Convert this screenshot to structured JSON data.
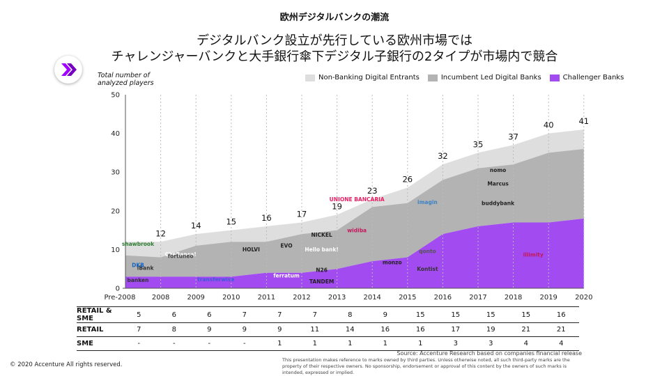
{
  "header": {
    "label": "欧州デジタルバンクの潮流",
    "title_line1": "デジタルバンク設立が先行している欧州市場では",
    "title_line2": "チャレンジャーバンクと大手銀行傘下デジタル子銀行の2タイプが市場内で競合"
  },
  "chart_data": {
    "type": "area",
    "ylabel": "Total number of analyzed players",
    "ylim": [
      0,
      50
    ],
    "yticks": [
      0,
      10,
      20,
      30,
      40,
      50
    ],
    "categories": [
      "Pre-2008",
      "2008",
      "2009",
      "2010",
      "2011",
      "2012",
      "2013",
      "2014",
      "2015",
      "2016",
      "2017",
      "2018",
      "2019",
      "2020"
    ],
    "series": [
      {
        "name": "Challenger Banks",
        "color": "#a24bf0",
        "values": [
          3,
          3,
          3,
          3,
          4,
          4,
          5,
          7,
          8,
          14,
          16,
          17,
          17,
          18
        ]
      },
      {
        "name": "Incumbent Led Digital Banks",
        "color": "#b3b3b3",
        "values": [
          5.5,
          5,
          8,
          9,
          8,
          10,
          10,
          14,
          14,
          14,
          15,
          15,
          18,
          18
        ]
      },
      {
        "name": "Non-Banking Digital Entrants",
        "color": "#dedede",
        "values": [
          3.5,
          4,
          3,
          3,
          4,
          3,
          4,
          2,
          4,
          4,
          4,
          5,
          5,
          5
        ]
      }
    ],
    "totals": [
      null,
      12,
      14,
      15,
      16,
      17,
      19,
      23,
      26,
      32,
      35,
      37,
      40,
      41
    ],
    "legend_position": "top-right",
    "grid": "vertical-dashed"
  },
  "legend": {
    "items": [
      {
        "label": "Non-Banking Digital Entrants",
        "color": "#dedede"
      },
      {
        "label": "Incumbent Led Digital Banks",
        "color": "#b3b3b3"
      },
      {
        "label": "Challenger Banks",
        "color": "#a24bf0"
      }
    ]
  },
  "table": {
    "rows": [
      {
        "label": "RETAIL & SME",
        "values": [
          "5",
          "6",
          "6",
          "7",
          "7",
          "7",
          "8",
          "9",
          "15",
          "15",
          "15",
          "15",
          "16"
        ]
      },
      {
        "label": "RETAIL",
        "values": [
          "7",
          "8",
          "9",
          "9",
          "9",
          "11",
          "14",
          "16",
          "16",
          "17",
          "19",
          "21",
          "21"
        ]
      },
      {
        "label": "SME",
        "values": [
          "-",
          "-",
          "-",
          "-",
          "1",
          "1",
          "1",
          "1",
          "1",
          "3",
          "3",
          "4",
          "4"
        ]
      }
    ]
  },
  "brands": [
    {
      "text": "CheBanca!",
      "x": "2009",
      "y": 8.3,
      "color": "#ffffff"
    },
    {
      "text": "fortuneo",
      "x": "2009",
      "y": 7.8,
      "color": "#444444"
    },
    {
      "text": "iBank",
      "x": "2008",
      "y": 4.8,
      "color": "#333333"
    },
    {
      "text": "transferwise",
      "x": "2010",
      "y": 1.8,
      "color": "#3b5bdb"
    },
    {
      "text": "HOLVI",
      "x": "2011",
      "y": 9.5,
      "color": "#222222"
    },
    {
      "text": "EVO",
      "x": "2012",
      "y": 10.5,
      "color": "#222222"
    },
    {
      "text": "ferratum",
      "x": "2012",
      "y": 2.8,
      "color": "#ffffff"
    },
    {
      "text": "NICKEL",
      "x": "2013",
      "y": 13.3,
      "color": "#222222"
    },
    {
      "text": "Hello bank!",
      "x": "2013",
      "y": 9.5,
      "color": "#ffffff"
    },
    {
      "text": "N26",
      "x": "2013",
      "y": 4.2,
      "color": "#222222"
    },
    {
      "text": "TANDEM",
      "x": "2013",
      "y": 1.3,
      "color": "#222222"
    },
    {
      "text": "widiba",
      "x": "2014",
      "y": 14.5,
      "color": "#c2185b"
    },
    {
      "text": "UNIONE BANCARIA",
      "x": "2014",
      "y": 22.5,
      "color": "#e91e63"
    },
    {
      "text": "monzo",
      "x": "2015",
      "y": 6.2,
      "color": "#222222"
    },
    {
      "text": "imagin",
      "x": "2016",
      "y": 21.8,
      "color": "#3b82c4"
    },
    {
      "text": "qonto",
      "x": "2016",
      "y": 9.1,
      "color": "#555555"
    },
    {
      "text": "Kontist",
      "x": "2016",
      "y": 4.5,
      "color": "#333333"
    },
    {
      "text": "nomo",
      "x": "2018",
      "y": 30,
      "color": "#222222"
    },
    {
      "text": "Marcus",
      "x": "2018",
      "y": 26.5,
      "color": "#222222"
    },
    {
      "text": "buddybank",
      "x": "2018",
      "y": 21.5,
      "color": "#222222"
    },
    {
      "text": "illimity",
      "x": "2019",
      "y": 8.2,
      "color": "#c2185b"
    },
    {
      "text": "shawbrook",
      "x": "Pre-2008",
      "y": 11,
      "color": "#2e7d32"
    },
    {
      "text": "DKB",
      "x": "Pre-2008",
      "y": 5.5,
      "color": "#1565c0"
    },
    {
      "text": "banken",
      "x": "Pre-2008",
      "y": 1.6,
      "color": "#333333"
    }
  ],
  "footer": {
    "source": "Source: Accenture Research based on companies financial release",
    "disclaimer": "This presentation makes reference to marks owned by third parties.  Unless otherwise noted, all such third-party marks are the property of their respective owners.  No sponsorship, endorsement or approval of this content by the owners of such marks is intended, expressed or implied.",
    "copyright": "© 2020 Accenture  All rights reserved."
  }
}
